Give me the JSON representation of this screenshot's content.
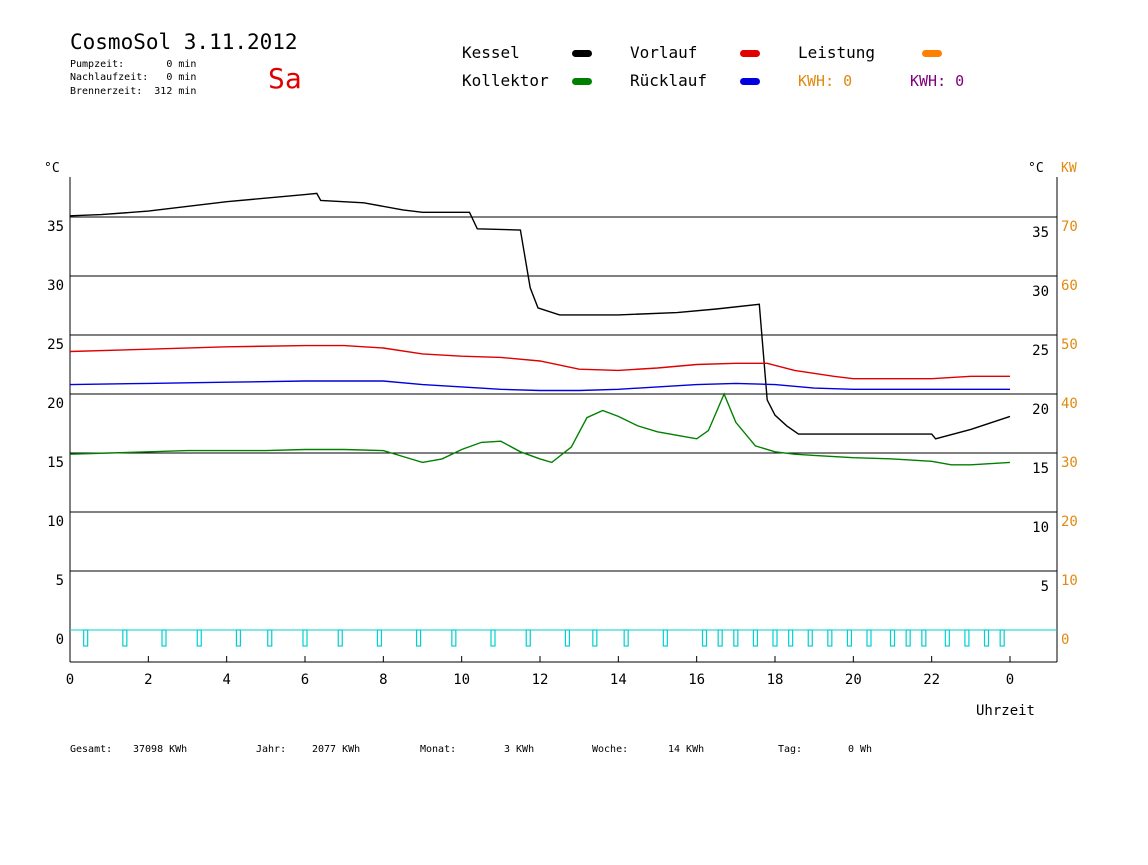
{
  "header": {
    "title": "CosmoSol 3.11.2012",
    "day": "Sa",
    "stats": [
      "Pumpzeit:       0 min",
      "Nachlaufzeit:   0 min",
      "Brennerzeit:  312 min"
    ]
  },
  "legend": {
    "items": [
      {
        "label": "Kessel",
        "color": "#000000"
      },
      {
        "label": "Vorlauf",
        "color": "#e00000"
      },
      {
        "label": "Leistung",
        "color": "#ff8000"
      },
      {
        "label": "Kollektor",
        "color": "#008000"
      },
      {
        "label": "Rücklauf",
        "color": "#0000e0"
      }
    ],
    "kwh_orange": "KWH: 0",
    "kwh_purple": "KWH: 0",
    "kwh_orange_color": "#e08a10",
    "kwh_purple_color": "#800080"
  },
  "chart_data": {
    "type": "line",
    "title": "CosmoSol 3.11.2012",
    "xlabel": "Uhrzeit",
    "ylabel_left": "°C",
    "ylabel_right": "°C",
    "ylabel_right2": "KW",
    "xlim": [
      0,
      24
    ],
    "ylim": [
      0,
      35
    ],
    "grid": true,
    "x_ticks": [
      "0",
      "2",
      "4",
      "6",
      "8",
      "10",
      "12",
      "14",
      "16",
      "18",
      "20",
      "22",
      "0"
    ],
    "y_ticks_left": [
      "35",
      "30",
      "25",
      "20",
      "15",
      "10",
      "5",
      "0"
    ],
    "y_ticks_right": [
      "35",
      "30",
      "25",
      "20",
      "15",
      "10",
      "5"
    ],
    "y_ticks_kw": [
      "70",
      "60",
      "50",
      "40",
      "30",
      "20",
      "10",
      "0"
    ],
    "series": [
      {
        "name": "Kessel",
        "color": "#000000",
        "x": [
          0,
          0.8,
          2,
          4,
          6,
          6.3,
          6.4,
          7.5,
          8.5,
          9,
          10.2,
          10.4,
          11.5,
          11.75,
          11.95,
          12.5,
          14,
          15.5,
          16.5,
          17.6,
          17.8,
          18.0,
          18.3,
          18.6,
          20,
          22,
          22.1,
          23,
          24
        ],
        "y": [
          35.1,
          35.2,
          35.5,
          36.3,
          36.9,
          37.0,
          36.4,
          36.2,
          35.6,
          35.4,
          35.4,
          34.0,
          33.9,
          29.0,
          27.3,
          26.7,
          26.7,
          26.9,
          27.2,
          27.6,
          19.5,
          18.2,
          17.3,
          16.6,
          16.6,
          16.6,
          16.2,
          17.0,
          18.1
        ]
      },
      {
        "name": "Vorlauf",
        "color": "#e00000",
        "x": [
          0,
          2,
          4,
          6,
          7,
          8,
          9,
          10,
          11,
          12,
          13,
          14,
          15,
          16,
          17,
          17.8,
          18.5,
          19.5,
          20,
          21,
          22,
          23,
          24
        ],
        "y": [
          23.6,
          23.8,
          24.0,
          24.1,
          24.1,
          23.9,
          23.4,
          23.2,
          23.1,
          22.8,
          22.1,
          22.0,
          22.2,
          22.5,
          22.6,
          22.6,
          22.0,
          21.5,
          21.3,
          21.3,
          21.3,
          21.5,
          21.5
        ]
      },
      {
        "name": "Rücklauf",
        "color": "#0000e0",
        "x": [
          0,
          2,
          4,
          6,
          8,
          9,
          10,
          11,
          12,
          13,
          14,
          15,
          16,
          17,
          18,
          19,
          20,
          22,
          24
        ],
        "y": [
          20.8,
          20.9,
          21.0,
          21.1,
          21.1,
          20.8,
          20.6,
          20.4,
          20.3,
          20.3,
          20.4,
          20.6,
          20.8,
          20.9,
          20.8,
          20.5,
          20.4,
          20.4,
          20.4
        ]
      },
      {
        "name": "Kollektor",
        "color": "#008000",
        "x": [
          0,
          1,
          2,
          3,
          4,
          5,
          6,
          7,
          8,
          8.5,
          9,
          9.5,
          10,
          10.5,
          11,
          11.5,
          12,
          12.3,
          12.8,
          13.2,
          13.6,
          14,
          14.5,
          15,
          15.5,
          16,
          16.3,
          16.7,
          17.0,
          17.5,
          18,
          18.5,
          19,
          20,
          21,
          22,
          22.5,
          23,
          24
        ],
        "y": [
          14.9,
          15.0,
          15.1,
          15.2,
          15.2,
          15.2,
          15.3,
          15.3,
          15.2,
          14.7,
          14.2,
          14.5,
          15.3,
          15.9,
          16.0,
          15.1,
          14.5,
          14.2,
          15.5,
          18.0,
          18.6,
          18.1,
          17.3,
          16.8,
          16.5,
          16.2,
          16.9,
          20.0,
          17.6,
          15.6,
          15.1,
          14.9,
          14.8,
          14.6,
          14.5,
          14.3,
          14.0,
          14.0,
          14.2
        ]
      }
    ],
    "pump_pulse_hours": [
      0.4,
      1.4,
      2.4,
      3.3,
      4.3,
      5.1,
      6.0,
      6.9,
      7.9,
      8.9,
      9.8,
      10.8,
      11.7,
      12.7,
      13.4,
      14.2,
      15.2,
      16.2,
      16.6,
      17.0,
      17.5,
      18.0,
      18.4,
      18.9,
      19.4,
      19.9,
      20.4,
      21.0,
      21.4,
      21.8,
      22.4,
      22.9,
      23.4,
      23.8
    ]
  },
  "footer": [
    {
      "label": "Gesamt:",
      "value": "37098 KWh"
    },
    {
      "label": "Jahr:",
      "value": "2077 KWh"
    },
    {
      "label": "Monat:",
      "value": "3 KWh"
    },
    {
      "label": "Woche:",
      "value": "14 KWh"
    },
    {
      "label": "Tag:",
      "value": "0 Wh"
    }
  ]
}
